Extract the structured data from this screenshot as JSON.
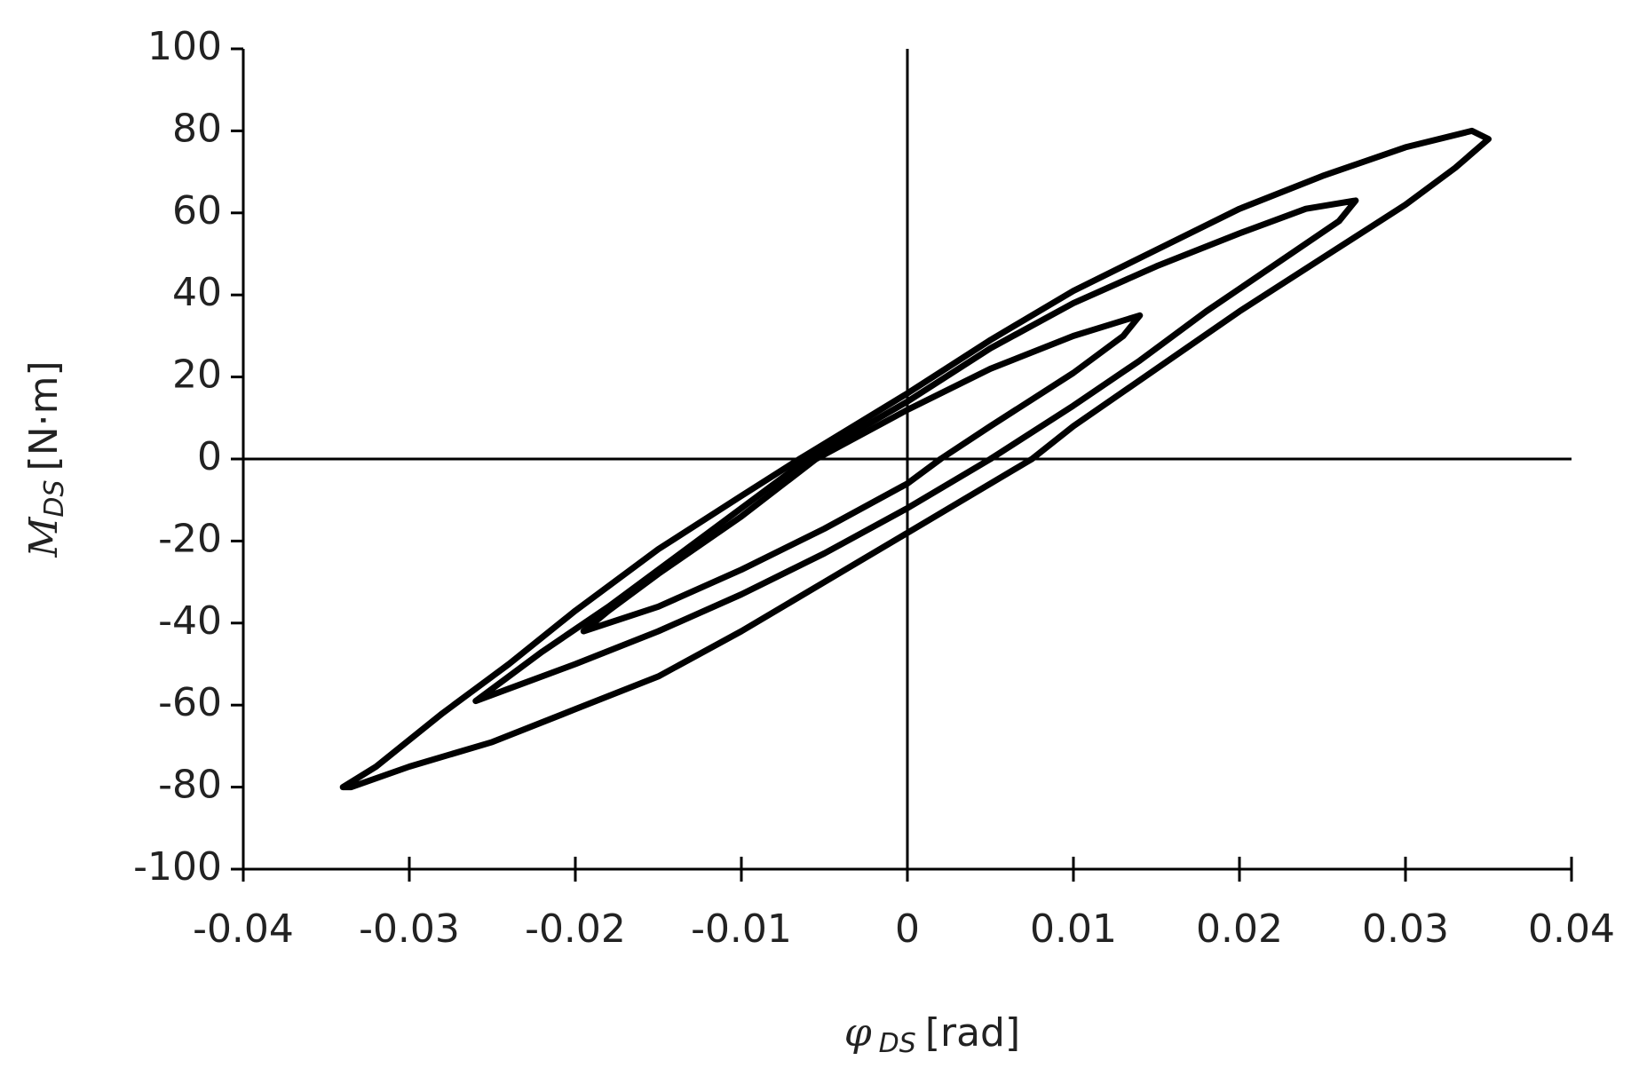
{
  "chart_data": {
    "type": "line",
    "x_label": {
      "symbol": "φ",
      "subscript": "DS",
      "unit": "[rad]"
    },
    "y_label": {
      "symbol": "M",
      "subscript": "DS",
      "unit": "[N·m]"
    },
    "xlim": [
      -0.04,
      0.04
    ],
    "xticks": [
      -0.04,
      -0.03,
      -0.02,
      -0.01,
      0,
      0.01,
      0.02,
      0.03,
      0.04
    ],
    "ylim": [
      -100,
      100
    ],
    "yticks": [
      -100,
      -80,
      -60,
      -40,
      -20,
      0,
      20,
      40,
      60,
      80,
      100
    ],
    "closed": true,
    "series": [
      {
        "color": "#000000",
        "x": [
          -0.034,
          -0.032,
          -0.028,
          -0.024,
          -0.02,
          -0.015,
          -0.01,
          -0.0065,
          0,
          0.005,
          0.01,
          0.015,
          0.02,
          0.025,
          0.03,
          0.034,
          0.035,
          0.033,
          0.03,
          0.025,
          0.02,
          0.015,
          0.01,
          0.0075,
          0,
          -0.005,
          -0.01,
          -0.015,
          -0.02,
          -0.025,
          -0.03,
          -0.0335
        ],
        "y": [
          -80,
          -75,
          -62,
          -50,
          -37,
          -22,
          -9,
          0,
          16,
          29,
          41,
          51,
          61,
          69,
          76,
          80,
          78,
          71,
          62,
          49,
          36,
          22,
          8,
          0,
          -18,
          -30,
          -42,
          -53,
          -61,
          -69,
          -75,
          -80
        ]
      },
      {
        "color": "#000000",
        "x": [
          -0.026,
          -0.025,
          -0.022,
          -0.018,
          -0.014,
          -0.01,
          -0.006,
          0,
          0.005,
          0.01,
          0.015,
          0.02,
          0.024,
          0.027,
          0.026,
          0.022,
          0.018,
          0.014,
          0.01,
          0.005,
          0,
          -0.005,
          -0.01,
          -0.015,
          -0.02,
          -0.024
        ],
        "y": [
          -59,
          -56,
          -47,
          -36,
          -24,
          -12,
          0,
          14,
          27,
          38,
          47,
          55,
          61,
          63,
          58,
          47,
          36,
          24,
          13,
          0,
          -12,
          -23,
          -33,
          -42,
          -50,
          -56
        ]
      },
      {
        "color": "#000000",
        "x": [
          -0.0195,
          -0.018,
          -0.015,
          -0.01,
          -0.0055,
          0,
          0.005,
          0.01,
          0.014,
          0.013,
          0.01,
          0.005,
          0.002,
          0,
          -0.005,
          -0.01,
          -0.015
        ],
        "y": [
          -42,
          -37,
          -28,
          -14,
          0,
          12,
          22,
          30,
          35,
          30,
          21,
          8,
          0,
          -6,
          -17,
          -27,
          -36
        ]
      }
    ]
  }
}
